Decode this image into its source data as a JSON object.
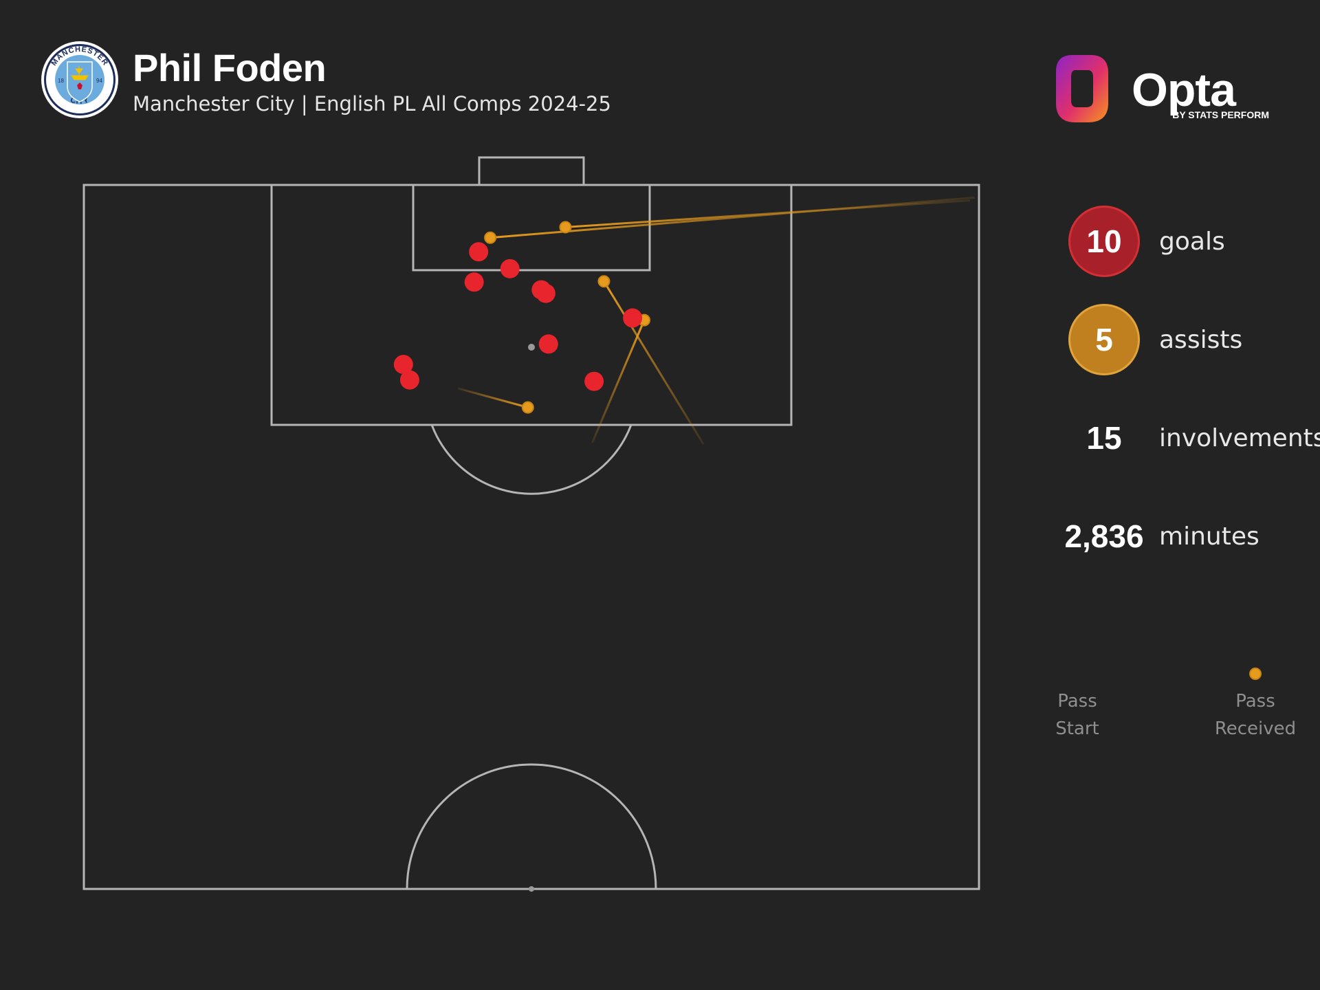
{
  "header": {
    "player_name": "Phil Foden",
    "subtitle": "Manchester City | English PL All Comps 2024-25"
  },
  "crest": {
    "top_text": "MANCHESTER",
    "bottom_text": "CITY",
    "year_left": "18",
    "year_right": "94",
    "colors": {
      "ring": "#6cabdd",
      "inner": "#6cabdd",
      "navy": "#1c2c5b",
      "rose": "#c8102e",
      "ship": "#f2c200"
    }
  },
  "brand": {
    "name": "Opta",
    "tagline": "BY STATS PERFORM",
    "colors": {
      "gradient_start": "#8e24c6",
      "gradient_mid": "#e0306a",
      "gradient_end": "#f7941d"
    }
  },
  "stats": [
    {
      "value": "10",
      "label": "goals",
      "style": "circle",
      "color": "#a8202a",
      "border": "#d32f35"
    },
    {
      "value": "5",
      "label": "assists",
      "style": "circle",
      "color": "#c0801f",
      "border": "#e0a43a"
    },
    {
      "value": "15",
      "label": "involvements",
      "style": "plain"
    },
    {
      "value": "2,836",
      "label": "minutes",
      "style": "plain"
    }
  ],
  "legend": {
    "start_label": [
      "Pass",
      "Start"
    ],
    "end_label": [
      "Pass",
      "Received"
    ]
  },
  "chart_data": {
    "type": "scatter",
    "coordinate_system": "attacking half, x 0-100 across the pitch, y 0-100 from own goal line to opponent goal line",
    "colors": {
      "goal": "#e8252d",
      "assist": "#e69b1e",
      "pitch_lines": "#b5b5b5",
      "background": "#232323"
    },
    "goals": [
      {
        "x": 44.1,
        "y": 90.5
      },
      {
        "x": 47.6,
        "y": 88.1
      },
      {
        "x": 43.6,
        "y": 86.2
      },
      {
        "x": 51.1,
        "y": 85.1
      },
      {
        "x": 51.6,
        "y": 84.6
      },
      {
        "x": 61.3,
        "y": 81.1
      },
      {
        "x": 51.9,
        "y": 77.4
      },
      {
        "x": 35.7,
        "y": 74.5
      },
      {
        "x": 36.4,
        "y": 72.3
      },
      {
        "x": 57.0,
        "y": 72.1
      }
    ],
    "assists": [
      {
        "start": {
          "x": 99.5,
          "y": 98.2
        },
        "end": {
          "x": 45.4,
          "y": 92.5
        }
      },
      {
        "start": {
          "x": 99.0,
          "y": 97.8
        },
        "end": {
          "x": 53.8,
          "y": 94.0
        }
      },
      {
        "start": {
          "x": 69.2,
          "y": 63.2
        },
        "end": {
          "x": 58.1,
          "y": 86.3
        }
      },
      {
        "start": {
          "x": 56.8,
          "y": 63.4
        },
        "end": {
          "x": 62.6,
          "y": 80.8
        }
      },
      {
        "start": {
          "x": 41.8,
          "y": 71.1
        },
        "end": {
          "x": 49.6,
          "y": 68.4
        }
      }
    ]
  }
}
